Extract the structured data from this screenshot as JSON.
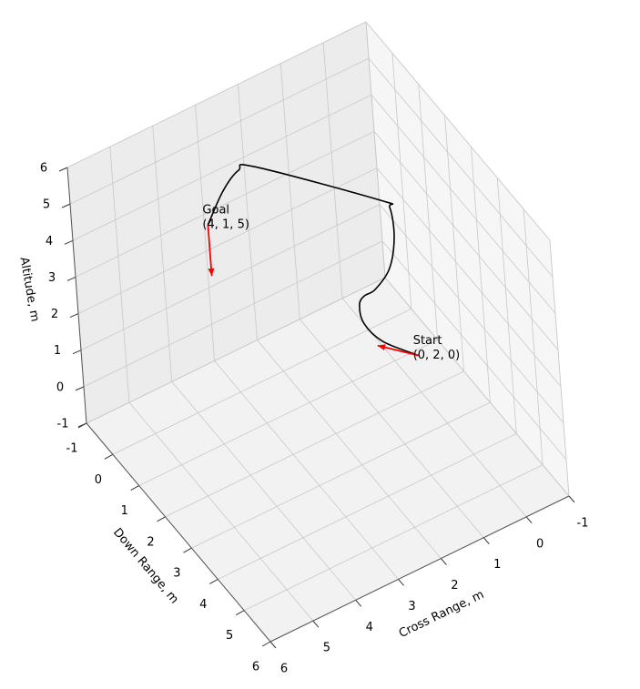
{
  "chart_data": {
    "type": "line3d",
    "xlabel": "Cross Range, m",
    "ylabel": "Down Range, m",
    "zlabel": "Altitude, m",
    "xlim": [
      -1,
      6
    ],
    "ylim": [
      -1,
      6
    ],
    "zlim": [
      -1,
      6
    ],
    "xticks": [
      -1,
      0,
      1,
      2,
      3,
      4,
      5,
      6
    ],
    "yticks": [
      -1,
      0,
      1,
      2,
      3,
      4,
      5,
      6
    ],
    "zticks": [
      -1,
      0,
      1,
      2,
      3,
      4,
      5,
      6
    ],
    "grid": true,
    "series": [
      {
        "color": "#000000",
        "x": [
          0,
          0.79,
          1.18,
          1.25,
          1.13,
          0.87,
          0.51,
          0.35,
          0.4,
          0.6,
          2.41,
          2.73,
          3.28,
          4
        ],
        "y": [
          2,
          2,
          2,
          2,
          2,
          2,
          2,
          2,
          2,
          2,
          0.2,
          0.1,
          0.4,
          1
        ],
        "z": [
          0,
          0.84,
          1.55,
          2.09,
          2.27,
          2.3,
          2.67,
          3.45,
          4.28,
          4.59,
          5,
          5,
          5,
          5
        ]
      }
    ],
    "arrows": [
      {
        "color": "#ff0000",
        "x": 0,
        "y": 2,
        "z": 0,
        "u": 0.54,
        "v": -0.68,
        "w": 0
      },
      {
        "color": "#ff0000",
        "x": 4,
        "y": 1,
        "z": 5,
        "u": 0,
        "v": 0,
        "w": -1.4
      }
    ],
    "annotations": [
      {
        "lines": [
          "Start",
          "(0, 2, 0)"
        ],
        "x": 0,
        "y": 2,
        "z": 0
      },
      {
        "lines": [
          "Goal",
          "(4, 1, 5)"
        ],
        "x": 4,
        "y": 1,
        "z": 5
      }
    ]
  }
}
